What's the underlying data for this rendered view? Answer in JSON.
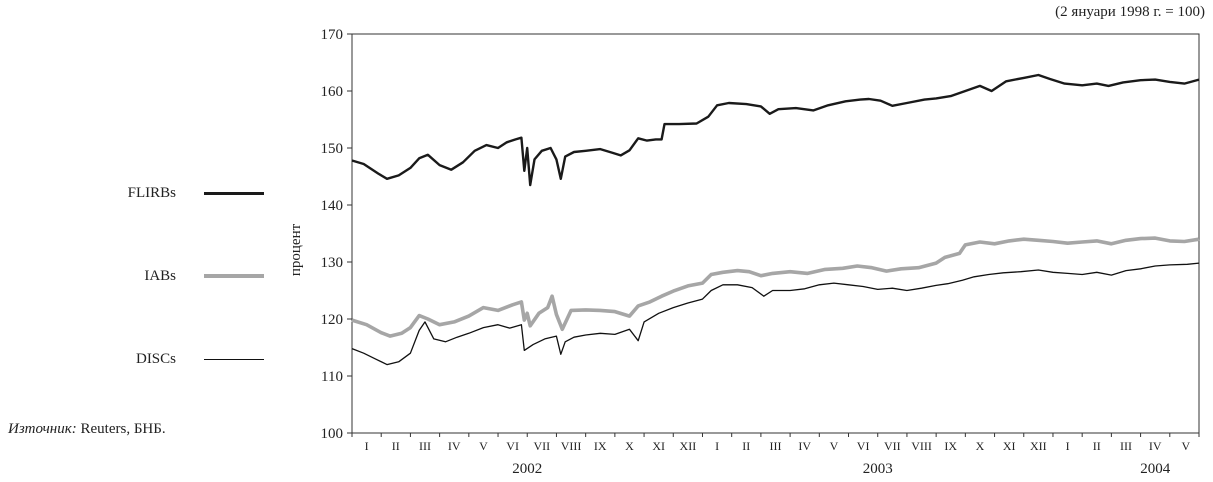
{
  "note": "(2 януари 1998 г. = 100)",
  "source": {
    "label": "Източник:",
    "text": " Reuters, БНБ."
  },
  "chart_data": {
    "type": "line",
    "ylabel": "процент",
    "ylim": [
      100,
      170
    ],
    "yticks": [
      100,
      110,
      120,
      130,
      140,
      150,
      160,
      170
    ],
    "xlim": [
      0,
      29
    ],
    "months": [
      "I",
      "II",
      "III",
      "IV",
      "V",
      "VI",
      "VII",
      "VIII",
      "IX",
      "X",
      "XI",
      "XII",
      "I",
      "II",
      "III",
      "IV",
      "V",
      "VI",
      "VII",
      "VIII",
      "IX",
      "X",
      "XI",
      "XII",
      "I",
      "II",
      "III",
      "IV",
      "V"
    ],
    "years": [
      {
        "label": "2002",
        "at": 6
      },
      {
        "label": "2003",
        "at": 18
      },
      {
        "label": "2004",
        "at": 27.5
      }
    ],
    "grid": false,
    "legend_position": "left",
    "series": [
      {
        "name": "FLIRBs",
        "color": "#1a1a1a",
        "width": 2.4,
        "points": [
          [
            0,
            147.8
          ],
          [
            0.4,
            147.2
          ],
          [
            0.9,
            145.5
          ],
          [
            1.2,
            144.6
          ],
          [
            1.6,
            145.2
          ],
          [
            2.0,
            146.5
          ],
          [
            2.3,
            148.2
          ],
          [
            2.6,
            148.8
          ],
          [
            3.0,
            147.0
          ],
          [
            3.4,
            146.2
          ],
          [
            3.8,
            147.5
          ],
          [
            4.2,
            149.5
          ],
          [
            4.6,
            150.5
          ],
          [
            5.0,
            150.0
          ],
          [
            5.3,
            151.0
          ],
          [
            5.6,
            151.5
          ],
          [
            5.8,
            151.8
          ],
          [
            5.9,
            146.0
          ],
          [
            6.0,
            150.0
          ],
          [
            6.1,
            143.5
          ],
          [
            6.25,
            148.0
          ],
          [
            6.5,
            149.5
          ],
          [
            6.8,
            150.0
          ],
          [
            7.0,
            148.0
          ],
          [
            7.15,
            144.6
          ],
          [
            7.3,
            148.5
          ],
          [
            7.6,
            149.3
          ],
          [
            8.0,
            149.5
          ],
          [
            8.5,
            149.8
          ],
          [
            8.9,
            149.2
          ],
          [
            9.2,
            148.7
          ],
          [
            9.5,
            149.6
          ],
          [
            9.8,
            151.7
          ],
          [
            10.1,
            151.3
          ],
          [
            10.4,
            151.5
          ],
          [
            10.6,
            151.5
          ],
          [
            10.7,
            154.2
          ],
          [
            11.2,
            154.2
          ],
          [
            11.8,
            154.3
          ],
          [
            12.2,
            155.5
          ],
          [
            12.5,
            157.5
          ],
          [
            12.9,
            157.9
          ],
          [
            13.5,
            157.7
          ],
          [
            14.0,
            157.3
          ],
          [
            14.3,
            156.0
          ],
          [
            14.6,
            156.8
          ],
          [
            15.2,
            157.0
          ],
          [
            15.8,
            156.6
          ],
          [
            16.3,
            157.5
          ],
          [
            16.9,
            158.2
          ],
          [
            17.4,
            158.5
          ],
          [
            17.7,
            158.6
          ],
          [
            18.1,
            158.3
          ],
          [
            18.5,
            157.4
          ],
          [
            19.0,
            157.9
          ],
          [
            19.6,
            158.5
          ],
          [
            20.0,
            158.7
          ],
          [
            20.5,
            159.1
          ],
          [
            21.0,
            160.0
          ],
          [
            21.5,
            160.9
          ],
          [
            21.9,
            160.0
          ],
          [
            22.4,
            161.7
          ],
          [
            23.0,
            162.3
          ],
          [
            23.5,
            162.8
          ],
          [
            23.9,
            162.1
          ],
          [
            24.4,
            161.3
          ],
          [
            25.0,
            161.0
          ],
          [
            25.5,
            161.3
          ],
          [
            25.9,
            160.9
          ],
          [
            26.4,
            161.5
          ],
          [
            27.0,
            161.9
          ],
          [
            27.5,
            162.0
          ],
          [
            28.0,
            161.6
          ],
          [
            28.5,
            161.3
          ],
          [
            29.0,
            162.0
          ]
        ]
      },
      {
        "name": "IABs",
        "color": "#a6a6a6",
        "width": 3.6,
        "points": [
          [
            0,
            119.8
          ],
          [
            0.5,
            119.0
          ],
          [
            1.0,
            117.6
          ],
          [
            1.3,
            117.0
          ],
          [
            1.7,
            117.5
          ],
          [
            2.0,
            118.5
          ],
          [
            2.3,
            120.6
          ],
          [
            2.6,
            120.0
          ],
          [
            3.0,
            119.0
          ],
          [
            3.5,
            119.5
          ],
          [
            4.0,
            120.5
          ],
          [
            4.5,
            122.0
          ],
          [
            5.0,
            121.5
          ],
          [
            5.5,
            122.5
          ],
          [
            5.8,
            123.0
          ],
          [
            5.9,
            119.8
          ],
          [
            6.0,
            121.0
          ],
          [
            6.1,
            118.8
          ],
          [
            6.4,
            121.0
          ],
          [
            6.7,
            122.0
          ],
          [
            6.85,
            124.0
          ],
          [
            7.0,
            120.8
          ],
          [
            7.2,
            118.2
          ],
          [
            7.5,
            121.5
          ],
          [
            8.0,
            121.6
          ],
          [
            8.5,
            121.5
          ],
          [
            9.0,
            121.3
          ],
          [
            9.5,
            120.5
          ],
          [
            9.8,
            122.3
          ],
          [
            10.2,
            123.0
          ],
          [
            10.6,
            124.0
          ],
          [
            11.0,
            124.9
          ],
          [
            11.5,
            125.8
          ],
          [
            12.0,
            126.3
          ],
          [
            12.3,
            127.8
          ],
          [
            12.7,
            128.2
          ],
          [
            13.2,
            128.5
          ],
          [
            13.6,
            128.3
          ],
          [
            14.0,
            127.6
          ],
          [
            14.4,
            128.0
          ],
          [
            15.0,
            128.3
          ],
          [
            15.6,
            128.0
          ],
          [
            16.2,
            128.7
          ],
          [
            16.8,
            128.9
          ],
          [
            17.3,
            129.3
          ],
          [
            17.8,
            129.0
          ],
          [
            18.3,
            128.4
          ],
          [
            18.8,
            128.8
          ],
          [
            19.4,
            129.0
          ],
          [
            20.0,
            129.8
          ],
          [
            20.3,
            130.8
          ],
          [
            20.8,
            131.5
          ],
          [
            21.0,
            133.0
          ],
          [
            21.5,
            133.5
          ],
          [
            22.0,
            133.2
          ],
          [
            22.5,
            133.7
          ],
          [
            23.0,
            134.0
          ],
          [
            23.5,
            133.8
          ],
          [
            24.0,
            133.6
          ],
          [
            24.5,
            133.3
          ],
          [
            25.0,
            133.5
          ],
          [
            25.5,
            133.7
          ],
          [
            26.0,
            133.2
          ],
          [
            26.5,
            133.8
          ],
          [
            27.0,
            134.1
          ],
          [
            27.5,
            134.2
          ],
          [
            28.0,
            133.7
          ],
          [
            28.5,
            133.6
          ],
          [
            29.0,
            134.0
          ]
        ]
      },
      {
        "name": "DISCs",
        "color": "#111111",
        "width": 1.3,
        "points": [
          [
            0,
            114.8
          ],
          [
            0.4,
            114.0
          ],
          [
            0.8,
            113.0
          ],
          [
            1.2,
            112.0
          ],
          [
            1.6,
            112.5
          ],
          [
            2.0,
            114.0
          ],
          [
            2.3,
            118.0
          ],
          [
            2.5,
            119.5
          ],
          [
            2.8,
            116.5
          ],
          [
            3.2,
            116.0
          ],
          [
            3.6,
            116.8
          ],
          [
            4.0,
            117.5
          ],
          [
            4.5,
            118.5
          ],
          [
            5.0,
            119.0
          ],
          [
            5.4,
            118.4
          ],
          [
            5.8,
            119.0
          ],
          [
            5.9,
            114.5
          ],
          [
            6.2,
            115.5
          ],
          [
            6.6,
            116.5
          ],
          [
            7.0,
            117.0
          ],
          [
            7.15,
            113.8
          ],
          [
            7.3,
            116.0
          ],
          [
            7.6,
            116.8
          ],
          [
            8.0,
            117.2
          ],
          [
            8.5,
            117.5
          ],
          [
            9.0,
            117.3
          ],
          [
            9.5,
            118.2
          ],
          [
            9.8,
            116.2
          ],
          [
            10.0,
            119.5
          ],
          [
            10.5,
            121.0
          ],
          [
            11.0,
            122.0
          ],
          [
            11.5,
            122.8
          ],
          [
            12.0,
            123.5
          ],
          [
            12.3,
            125.0
          ],
          [
            12.7,
            126.0
          ],
          [
            13.2,
            126.0
          ],
          [
            13.7,
            125.5
          ],
          [
            14.1,
            124.0
          ],
          [
            14.4,
            125.0
          ],
          [
            15.0,
            125.0
          ],
          [
            15.5,
            125.3
          ],
          [
            16.0,
            126.0
          ],
          [
            16.5,
            126.3
          ],
          [
            17.0,
            126.0
          ],
          [
            17.5,
            125.7
          ],
          [
            18.0,
            125.2
          ],
          [
            18.5,
            125.4
          ],
          [
            19.0,
            125.0
          ],
          [
            19.5,
            125.4
          ],
          [
            20.0,
            125.9
          ],
          [
            20.4,
            126.2
          ],
          [
            20.9,
            126.8
          ],
          [
            21.3,
            127.4
          ],
          [
            21.8,
            127.8
          ],
          [
            22.3,
            128.1
          ],
          [
            22.9,
            128.3
          ],
          [
            23.5,
            128.6
          ],
          [
            24.0,
            128.2
          ],
          [
            24.5,
            128.0
          ],
          [
            25.0,
            127.8
          ],
          [
            25.5,
            128.2
          ],
          [
            26.0,
            127.7
          ],
          [
            26.5,
            128.5
          ],
          [
            27.0,
            128.8
          ],
          [
            27.5,
            129.3
          ],
          [
            28.0,
            129.5
          ],
          [
            28.6,
            129.6
          ],
          [
            29.0,
            129.8
          ]
        ]
      }
    ]
  }
}
